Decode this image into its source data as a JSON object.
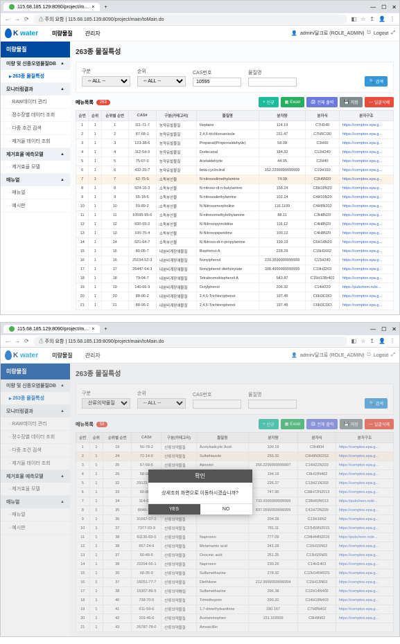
{
  "browser": {
    "tab_title": "115.68.185.129:8090/project/m…",
    "url": "115.68.185.139:8090/project/main/toMain.do",
    "security_label": "주의 요함"
  },
  "header": {
    "logo_text": "K water",
    "menu1": "미량물질",
    "menu2": "관리자",
    "user_label": "admin/달크로 (ROLE_ADMIN)",
    "logout": "Logout"
  },
  "sidebar": {
    "title": "미량물질",
    "sec1": "미량 및 신종오염물질DB",
    "item_263": "263종 물질특성",
    "sec2": "모니터링결과",
    "item_raw": "RAW데이터 관리",
    "item_jung": "정수장별 데이터 조회",
    "item_dajung": "다중 조건 검색",
    "item_jaegeo": "제거율 데이터 조회",
    "sec3": "제거효율 예측모델",
    "item_model": "제거효율 모델",
    "sec4": "매뉴얼",
    "item_manual": "매뉴얼",
    "item_yesi": "예시판"
  },
  "content": {
    "title": "263종 물질특성",
    "filters": {
      "f1_label": "구분",
      "f1_val": "-- ALL --",
      "f1_val2": "산류의약물질",
      "f2_label": "순위",
      "f2_val": "-- ALL --",
      "f3_label": "CAS번호",
      "f3_val": "10595",
      "f3_val2": "",
      "f4_label": "물질명",
      "search": "검색"
    },
    "listbar": {
      "label": "메뉴목록",
      "badge1": "263",
      "badge2": "58",
      "btn_new": "신규",
      "btn_excel": "Excel",
      "btn_print": "전체 출력",
      "btn_save": "저장",
      "btn_del": "일괄삭제"
    },
    "grid": {
      "cols": [
        "순번",
        "순위",
        "순위별 순번",
        "CAS#",
        "구분(카테고리)",
        "물질명",
        "분자량",
        "분자식",
        "분자구조"
      ],
      "rows1": [
        [
          "1",
          "1",
          "1",
          "111-71-7",
          "농약유발물질",
          "Heptane",
          "114.19",
          "C7H140",
          "https://comptox.epa.g..."
        ],
        [
          "2",
          "1",
          "2",
          "87-68-1",
          "농약유발물질",
          "2,4,6-trichloroanisole",
          "211.47",
          "C7H5CI30",
          "https://comptox.epa.g..."
        ],
        [
          "3",
          "1",
          "3",
          "123-38-6",
          "농약유발물질",
          "Propanal(Propionaldehyde)",
          "58.08",
          "C3H60",
          "https://comptox.epa.g..."
        ],
        [
          "4",
          "1",
          "4",
          "112-54-9",
          "농약유발물질",
          "Dodecanal",
          "184.32",
          "C12H240",
          "https://comptox.epa.g..."
        ],
        [
          "5",
          "1",
          "5",
          "75-07-0",
          "농약유발물질",
          "Acetaldehyde",
          "44.05",
          "C2H40",
          "https://comptox.epa.g..."
        ],
        [
          "6",
          "1",
          "6",
          "432-25-7",
          "농약유발물질",
          "beta-cyclocitral",
          "152.2299999999999",
          "C10H160",
          "https://comptox.epa.g..."
        ],
        [
          "7",
          "1",
          "7",
          "62-75-9",
          "소독부산물",
          "N-nitrosodimethylamine",
          "74.08",
          "C2H6N20",
          "https://comptox.epa.g..."
        ],
        [
          "8",
          "1",
          "8",
          "924-16-3",
          "소독부산물",
          "N-nitroso-di-n-butylamine",
          "158.24",
          "C8H18N20",
          "https://comptox.epa.g..."
        ],
        [
          "9",
          "1",
          "9",
          "55-18-5",
          "소독부산물",
          "N-nitrosodiethylamine",
          "102.14",
          "C4H10N20",
          "https://comptox.epa.g..."
        ],
        [
          "10",
          "1",
          "10",
          "59-89-2",
          "소독부산물",
          "N-Nitrosomorpholine",
          "116.1199",
          "C4H8N202",
          "https://comptox.epa.g..."
        ],
        [
          "11",
          "1",
          "11",
          "10595-95-6",
          "소독부산물",
          "N-nitrosomethylethylamine",
          "88.11",
          "C3H8N20",
          "https://comptox.epa.g..."
        ],
        [
          "12",
          "1",
          "12",
          "930-55-2",
          "소독부산물",
          "N-Nitrosopyrrolidine",
          "116.12",
          "C4H8N20",
          "https://comptox.epa.g..."
        ],
        [
          "13",
          "1",
          "13",
          "100-75-4",
          "소독부산물",
          "N-Nitrosopiperidine",
          "100.12",
          "C4H8N20",
          "https://comptox.epa.g..."
        ],
        [
          "14",
          "1",
          "14",
          "621-64-7",
          "소독부산물",
          "N-Nitroso-di-n-propylamine",
          "130.19",
          "C6H14N20",
          "https://comptox.epa.g..."
        ],
        [
          "15",
          "1",
          "15",
          "80-05-7",
          "내분비계장애물질",
          "Bisphenol-A",
          "228.29",
          "C15H1602",
          "https://comptox.epa.g..."
        ],
        [
          "16",
          "1",
          "16",
          "25154-52-3",
          "내분비계장애물질",
          "Nonylphenol",
          "220.3599999999999",
          "C15H240",
          "https://comptox.epa.g..."
        ],
        [
          "17",
          "1",
          "17",
          "26447-64-3",
          "내분비계장애물질",
          "Nonylphenol diethoxylate",
          "308.4999999999999",
          "C19H3203",
          "https://comptox.epa.g..."
        ],
        [
          "18",
          "1",
          "18",
          "79-94-7",
          "내분비계장애물질",
          "Tetrabromobisphenol A",
          "543.87",
          "C15H12Br402",
          "https://comptox.epa.g..."
        ],
        [
          "19",
          "1",
          "19",
          "140-66-9",
          "내분비계장애물질",
          "Octylphenol",
          "206.32",
          "C14H220",
          "https://pubchem.ncbi..."
        ],
        [
          "20",
          "1",
          "20",
          "88-06-2",
          "내분비계장애물질",
          "2,4,6-Trichlorophenol",
          "197.45",
          "C6H3Cl3O",
          "https://comptox.epa.g..."
        ],
        [
          "21",
          "1",
          "21",
          "88-06-2",
          "내분비계장애물질",
          "2,4,6-Trichlorophenol",
          "197.45",
          "C6H3Cl3O",
          "https://comptox.epa.g..."
        ]
      ],
      "rows2": [
        [
          "1",
          "1",
          "19",
          "50-78-2",
          "산류의약물질",
          "Acetylsalicylic Acid",
          "100.19",
          "C9H804",
          "https://comptox.epa.g..."
        ],
        [
          "2",
          "1",
          "24",
          "72-14-0",
          "산류의약물질",
          "Sulfathiazole",
          "255.32",
          "C9H9N302S2",
          "https://comptox.epa.g..."
        ],
        [
          "3",
          "1",
          "25",
          "57-68-6",
          "산류의약물질",
          "Atenolol",
          "266.2299999999997",
          "C14H22N203",
          "https://comptox.epa.g..."
        ],
        [
          "4",
          "1",
          "26",
          "58-08-2",
          "산류의약물질",
          "",
          "194.19",
          "C8H10N402",
          "https://comptox.epa.g..."
        ],
        [
          "5",
          "1",
          "32",
          "29122-68-7",
          "산류의약물질",
          "",
          "226.27",
          "C13H21N203",
          "https://comptox.epa.g..."
        ],
        [
          "6",
          "1",
          "33",
          "60-80-0",
          "산류의약물질",
          "",
          "747.95",
          "C38H72N2013",
          "https://comptox.epa.g..."
        ],
        [
          "7",
          "1",
          "34",
          "114-07-8",
          "산류의약물질",
          "",
          "733.9399999999999",
          "C38H69N013",
          "https://pubchem.ncbi..."
        ],
        [
          "8",
          "1",
          "35",
          "8040-14-6",
          "산류의약물질",
          "",
          "837.0599999999999",
          "C41H72N209",
          "https://comptox.epa.g..."
        ],
        [
          "9",
          "1",
          "36",
          "31667-07-1",
          "산류의약물질",
          "",
          "204.28",
          "C13H16N2",
          "https://comptox.epa.g..."
        ],
        [
          "10",
          "1",
          "37",
          "7377-03-9",
          "산류의약물질",
          "",
          "781.11",
          "C37H59N2015",
          "https://comptox.epa.g..."
        ],
        [
          "11",
          "1",
          "38",
          "61136-83-0",
          "산류의약물질",
          "Naproxen",
          "777.09",
          "C34H44N2016",
          "https://pubchem.ncbi..."
        ],
        [
          "12",
          "1",
          "38",
          "657-24-9",
          "산류의약물질",
          "Metamamic acid",
          "241.28",
          "C15H15N02",
          "https://comptox.epa.g..."
        ],
        [
          "13",
          "1",
          "37",
          "50-48-6",
          "산류의약물질",
          "Oxocinic acid",
          "261.25",
          "C13H15N05",
          "https://comptox.epa.g..."
        ],
        [
          "14",
          "1",
          "38",
          "22204-56-1",
          "산류의약물질",
          "Naproxen",
          "230.26",
          "C14H1403",
          "https://comptox.epa.g..."
        ],
        [
          "15",
          "1",
          "30",
          "68-35-9",
          "산류의약물질",
          "Sulfamethazine",
          "278.32",
          "C12H14N402S",
          "https://comptox.epa.g..."
        ],
        [
          "16",
          "1",
          "37",
          "16051-77-7",
          "산류의약물질",
          "Diethilone",
          "212.9999999999994",
          "C15H13N03",
          "https://comptox.epa.g..."
        ],
        [
          "17",
          "1",
          "38",
          "15307-86-5",
          "산류의약物질",
          "Sulfamethazine",
          "296.38",
          "C12H14N402",
          "https://comptox.epa.g..."
        ],
        [
          "18",
          "1",
          "40",
          "738-70-5",
          "산류의약물질",
          "Trimethoprim",
          "290.32",
          "C14H18N403",
          "https://comptox.epa.g..."
        ],
        [
          "19",
          "1",
          "41",
          "611-59-6",
          "산류의약물질",
          "1,7-dimethylxanthine",
          "180.167",
          "C7H8N402",
          "https://comptox.epa.g..."
        ],
        [
          "20",
          "1",
          "42",
          "109-46-6",
          "산류의약물질",
          "Acetaminophen",
          "151.169999",
          "C8H9N02",
          "https://comptox.epa.g..."
        ],
        [
          "21",
          "1",
          "43",
          "26787-78-0",
          "산류의약물질",
          "Amoxicillin",
          "",
          "",
          ""
        ]
      ]
    }
  },
  "modal": {
    "title": "확인",
    "body": "상세조회 화면으로 이동하시겠습니까?",
    "yes": "YES",
    "no": "NO"
  }
}
